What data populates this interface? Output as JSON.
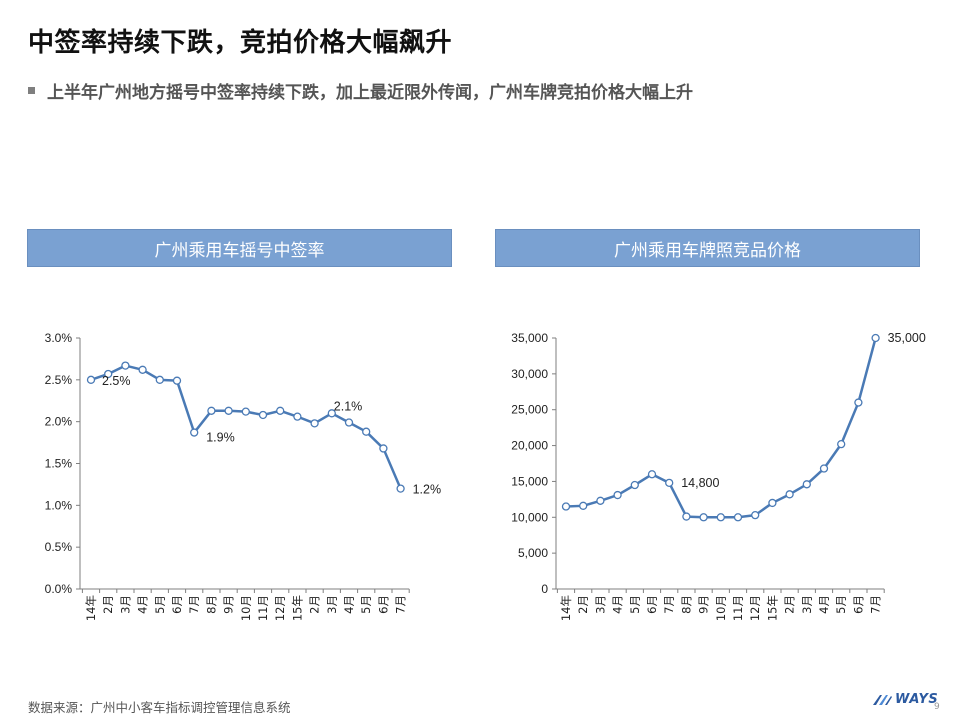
{
  "page": {
    "title": "中签率持续下跌，竞拍价格大幅飙升",
    "subtitle": "上半年广州地方摇号中签率持续下跌，加上最近限外传闻，广州车牌竞拍价格大幅上升",
    "source": "数据来源：广州中小客车指标调控管理信息系统",
    "logo_text": "WAYS",
    "page_number": "9"
  },
  "colors": {
    "header_bg": "#7aa1d2",
    "series": "#4a7ab5",
    "axis": "#7f7f7f"
  },
  "chart_data": [
    {
      "type": "line",
      "title": "广州乘用车摇号中签率",
      "categories": [
        "14年",
        "2月",
        "3月",
        "4月",
        "5月",
        "6月",
        "7月",
        "8月",
        "9月",
        "10月",
        "11月",
        "12月",
        "15年",
        "2月",
        "3月",
        "4月",
        "5月",
        "6月",
        "7月"
      ],
      "series": [
        {
          "values": [
            2.5,
            2.57,
            2.67,
            2.62,
            2.5,
            2.49,
            1.87,
            2.13,
            2.13,
            2.12,
            2.08,
            2.13,
            2.06,
            1.98,
            2.1,
            1.99,
            1.88,
            1.68,
            1.2
          ]
        }
      ],
      "ylim": [
        0,
        3.0
      ],
      "y_ticks": [
        "0.0%",
        "0.5%",
        "1.0%",
        "1.5%",
        "2.0%",
        "2.5%",
        "3.0%"
      ],
      "data_labels": [
        {
          "index": 0,
          "text": "2.5%"
        },
        {
          "index": 6,
          "text": "1.9%"
        },
        {
          "index": 14,
          "text": "2.1%"
        },
        {
          "index": 18,
          "text": "1.2%"
        }
      ],
      "grid": false
    },
    {
      "type": "line",
      "title": "广州乘用车牌照竞品价格",
      "categories": [
        "14年",
        "2月",
        "3月",
        "4月",
        "5月",
        "6月",
        "7月",
        "8月",
        "9月",
        "10月",
        "11月",
        "12月",
        "15年",
        "2月",
        "3月",
        "4月",
        "5月",
        "6月",
        "7月"
      ],
      "series": [
        {
          "values": [
            11500,
            11600,
            12300,
            13100,
            14500,
            16000,
            14800,
            10100,
            10000,
            10000,
            10000,
            10300,
            12000,
            13200,
            14600,
            16800,
            20200,
            26000,
            35000
          ]
        }
      ],
      "ylim": [
        0,
        35000
      ],
      "y_ticks": [
        "0",
        "5,000",
        "10,000",
        "15,000",
        "20,000",
        "25,000",
        "30,000",
        "35,000"
      ],
      "data_labels": [
        {
          "index": 6,
          "text": "14,800"
        },
        {
          "index": 18,
          "text": "35,000"
        }
      ],
      "grid": false
    }
  ]
}
